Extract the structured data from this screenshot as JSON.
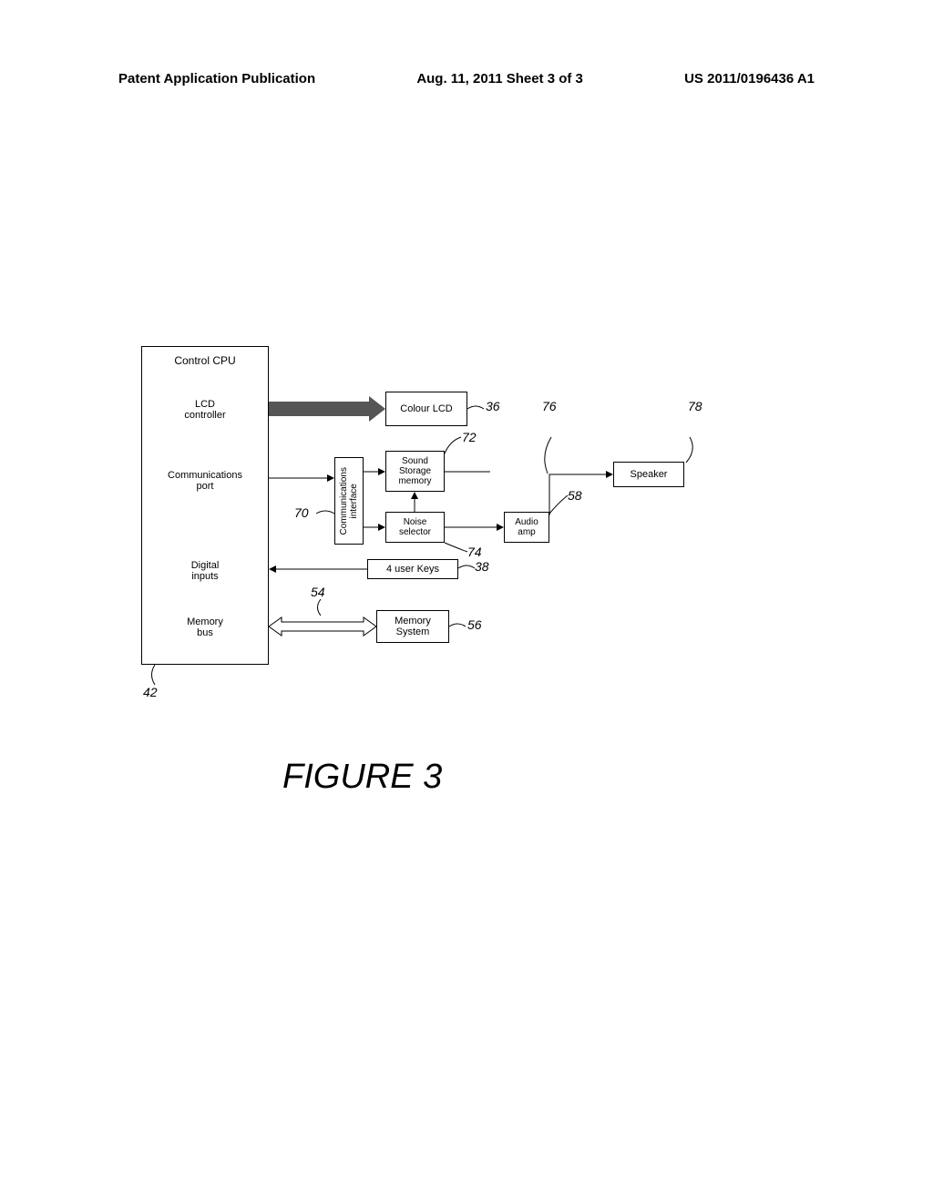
{
  "header": {
    "left": "Patent Application Publication",
    "center": "Aug. 11, 2011  Sheet 3 of 3",
    "right": "US 2011/0196436 A1"
  },
  "diagram": {
    "cpu": {
      "title": "Control CPU",
      "lcd_controller": "LCD\ncontroller",
      "comm_port": "Communications\nport",
      "digital_inputs": "Digital\ninputs",
      "memory_bus": "Memory\nbus",
      "ref": "42"
    },
    "colour_lcd": {
      "label": "Colour LCD",
      "ref": "36"
    },
    "comm_interface": {
      "label": "Communications\ninterface",
      "ref": "70"
    },
    "sound_storage": {
      "label": "Sound\nStorage\nmemory",
      "ref": "72"
    },
    "noise_selector": {
      "label": "Noise\nselector",
      "ref": "74"
    },
    "user_keys": {
      "label": "4 user Keys",
      "ref": "38"
    },
    "memory_system": {
      "label": "Memory\nSystem",
      "ref": "56"
    },
    "memory_arrow_ref": "54",
    "audio_amp": {
      "label": "Audio\namp",
      "ref": "58"
    },
    "speaker": {
      "label": "Speaker",
      "ref": "78"
    },
    "amp_speaker_ref": "76"
  },
  "figure_label": "FIGURE  3",
  "colors": {
    "stroke": "#000000",
    "arrow_fill": "#555555",
    "background": "#ffffff"
  }
}
